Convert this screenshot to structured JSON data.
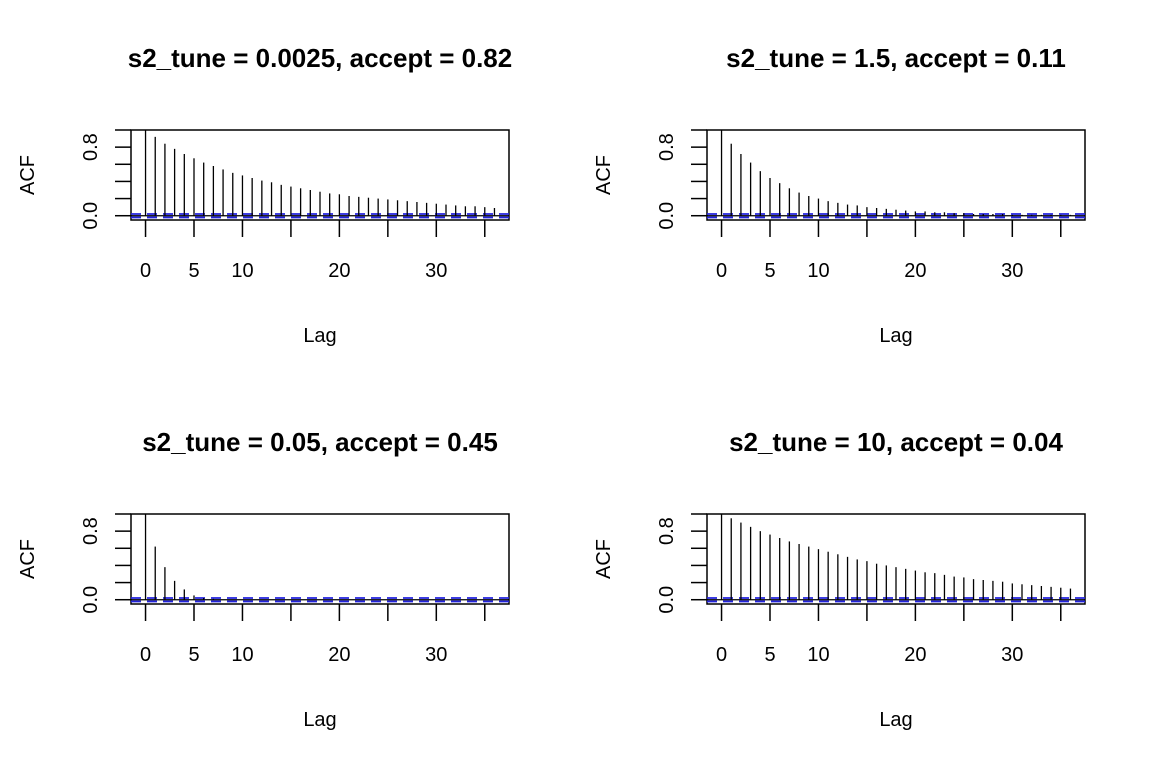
{
  "chart_data": [
    {
      "type": "bar",
      "title": "s2_tune = 0.0025, accept = 0.82",
      "xlabel": "Lag",
      "ylabel": "ACF",
      "xlim": [
        -1.5,
        37.5
      ],
      "ylim": [
        -0.05,
        1.0
      ],
      "x_ticks": [
        0,
        5,
        10,
        15,
        20,
        25,
        30,
        35
      ],
      "x_tick_labels": [
        "0",
        "5",
        "10",
        "",
        "20",
        "",
        "30",
        ""
      ],
      "y_ticks": [
        0.0,
        0.2,
        0.4,
        0.6,
        0.8,
        1.0
      ],
      "y_tick_labels": [
        "0.0",
        "",
        "",
        "",
        "0.8",
        ""
      ],
      "ci": 0.02,
      "lags": [
        0,
        1,
        2,
        3,
        4,
        5,
        6,
        7,
        8,
        9,
        10,
        11,
        12,
        13,
        14,
        15,
        16,
        17,
        18,
        19,
        20,
        21,
        22,
        23,
        24,
        25,
        26,
        27,
        28,
        29,
        30,
        31,
        32,
        33,
        34,
        35,
        36
      ],
      "values": [
        1.0,
        0.92,
        0.84,
        0.78,
        0.72,
        0.67,
        0.62,
        0.58,
        0.54,
        0.5,
        0.47,
        0.44,
        0.41,
        0.39,
        0.36,
        0.34,
        0.32,
        0.3,
        0.28,
        0.26,
        0.25,
        0.23,
        0.22,
        0.21,
        0.2,
        0.19,
        0.18,
        0.17,
        0.16,
        0.15,
        0.14,
        0.13,
        0.12,
        0.11,
        0.11,
        0.1,
        0.09
      ]
    },
    {
      "type": "bar",
      "title": "s2_tune = 1.5, accept = 0.11",
      "xlabel": "Lag",
      "ylabel": "ACF",
      "xlim": [
        -1.5,
        37.5
      ],
      "ylim": [
        -0.05,
        1.0
      ],
      "x_ticks": [
        0,
        5,
        10,
        15,
        20,
        25,
        30,
        35
      ],
      "x_tick_labels": [
        "0",
        "5",
        "10",
        "",
        "20",
        "",
        "30",
        ""
      ],
      "y_ticks": [
        0.0,
        0.2,
        0.4,
        0.6,
        0.8,
        1.0
      ],
      "y_tick_labels": [
        "0.0",
        "",
        "",
        "",
        "0.8",
        ""
      ],
      "ci": 0.02,
      "lags": [
        0,
        1,
        2,
        3,
        4,
        5,
        6,
        7,
        8,
        9,
        10,
        11,
        12,
        13,
        14,
        15,
        16,
        17,
        18,
        19,
        20,
        21,
        22,
        23,
        24,
        25,
        26,
        27,
        28,
        29,
        30,
        31,
        32,
        33,
        34,
        35,
        36
      ],
      "values": [
        1.0,
        0.84,
        0.72,
        0.62,
        0.52,
        0.44,
        0.38,
        0.32,
        0.27,
        0.23,
        0.2,
        0.17,
        0.15,
        0.13,
        0.12,
        0.1,
        0.09,
        0.08,
        0.07,
        0.06,
        0.05,
        0.05,
        0.04,
        0.04,
        0.03,
        0.03,
        0.02,
        0.02,
        0.02,
        0.02,
        0.01,
        0.01,
        0.01,
        0.01,
        0.01,
        0.01,
        0.01
      ]
    },
    {
      "type": "bar",
      "title": "s2_tune = 0.05, accept = 0.45",
      "xlabel": "Lag",
      "ylabel": "ACF",
      "xlim": [
        -1.5,
        37.5
      ],
      "ylim": [
        -0.05,
        1.0
      ],
      "x_ticks": [
        0,
        5,
        10,
        15,
        20,
        25,
        30,
        35
      ],
      "x_tick_labels": [
        "0",
        "5",
        "10",
        "",
        "20",
        "",
        "30",
        ""
      ],
      "y_ticks": [
        0.0,
        0.2,
        0.4,
        0.6,
        0.8,
        1.0
      ],
      "y_tick_labels": [
        "0.0",
        "",
        "",
        "",
        "0.8",
        ""
      ],
      "ci": 0.02,
      "lags": [
        0,
        1,
        2,
        3,
        4,
        5,
        6,
        7,
        8,
        9,
        10,
        11,
        12,
        13,
        14,
        15,
        16,
        17,
        18,
        19,
        20,
        21,
        22,
        23,
        24,
        25,
        26,
        27,
        28,
        29,
        30,
        31,
        32,
        33,
        34,
        35,
        36
      ],
      "values": [
        1.0,
        0.62,
        0.38,
        0.22,
        0.12,
        0.05,
        0.02,
        0.01,
        0.0,
        0.0,
        0.0,
        0.0,
        0.0,
        0.0,
        0.0,
        0.0,
        0.0,
        0.0,
        0.0,
        0.0,
        0.0,
        0.0,
        0.0,
        0.0,
        0.0,
        0.0,
        0.0,
        0.0,
        0.0,
        0.0,
        0.0,
        0.0,
        0.0,
        0.0,
        0.0,
        0.0,
        0.0
      ]
    },
    {
      "type": "bar",
      "title": "s2_tune = 10, accept = 0.04",
      "xlabel": "Lag",
      "ylabel": "ACF",
      "xlim": [
        -1.5,
        37.5
      ],
      "ylim": [
        -0.05,
        1.0
      ],
      "x_ticks": [
        0,
        5,
        10,
        15,
        20,
        25,
        30,
        35
      ],
      "x_tick_labels": [
        "0",
        "5",
        "10",
        "",
        "20",
        "",
        "30",
        ""
      ],
      "y_ticks": [
        0.0,
        0.2,
        0.4,
        0.6,
        0.8,
        1.0
      ],
      "y_tick_labels": [
        "0.0",
        "",
        "",
        "",
        "0.8",
        ""
      ],
      "ci": 0.02,
      "lags": [
        0,
        1,
        2,
        3,
        4,
        5,
        6,
        7,
        8,
        9,
        10,
        11,
        12,
        13,
        14,
        15,
        16,
        17,
        18,
        19,
        20,
        21,
        22,
        23,
        24,
        25,
        26,
        27,
        28,
        29,
        30,
        31,
        32,
        33,
        34,
        35,
        36
      ],
      "values": [
        1.0,
        0.95,
        0.9,
        0.85,
        0.8,
        0.76,
        0.72,
        0.68,
        0.65,
        0.62,
        0.59,
        0.56,
        0.53,
        0.5,
        0.47,
        0.45,
        0.42,
        0.4,
        0.38,
        0.36,
        0.34,
        0.32,
        0.31,
        0.29,
        0.27,
        0.26,
        0.24,
        0.23,
        0.22,
        0.21,
        0.19,
        0.18,
        0.17,
        0.16,
        0.15,
        0.14,
        0.13
      ]
    }
  ]
}
